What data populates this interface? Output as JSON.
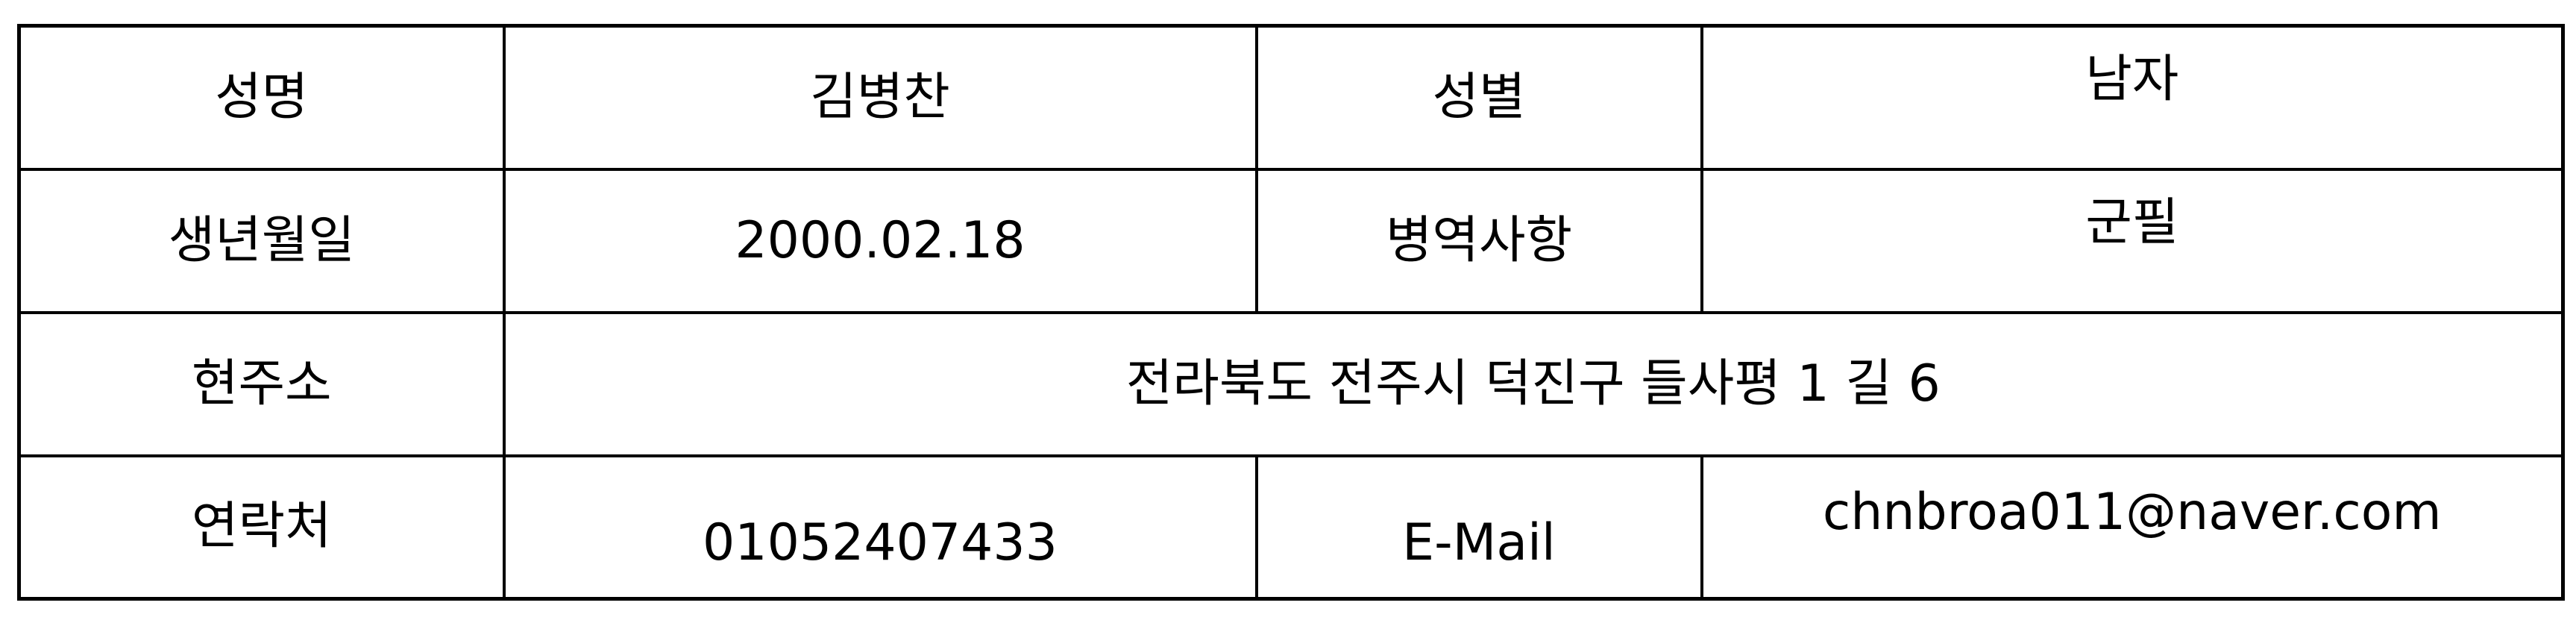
{
  "profile": {
    "rows": [
      {
        "label1": "성명",
        "value1": "김병찬",
        "label2": "성별",
        "value2": "남자"
      },
      {
        "label1": "생년월일",
        "value1": "2000.02.18",
        "label2": "병역사항",
        "value2": "군필"
      },
      {
        "label1": "현주소",
        "value1": "전라북도 전주시 덕진구 들사평 1 길 6"
      },
      {
        "label1": "연락처",
        "value1": "01052407433",
        "label2": "E-Mail",
        "value2": "chnbroa011@naver.com"
      }
    ]
  }
}
